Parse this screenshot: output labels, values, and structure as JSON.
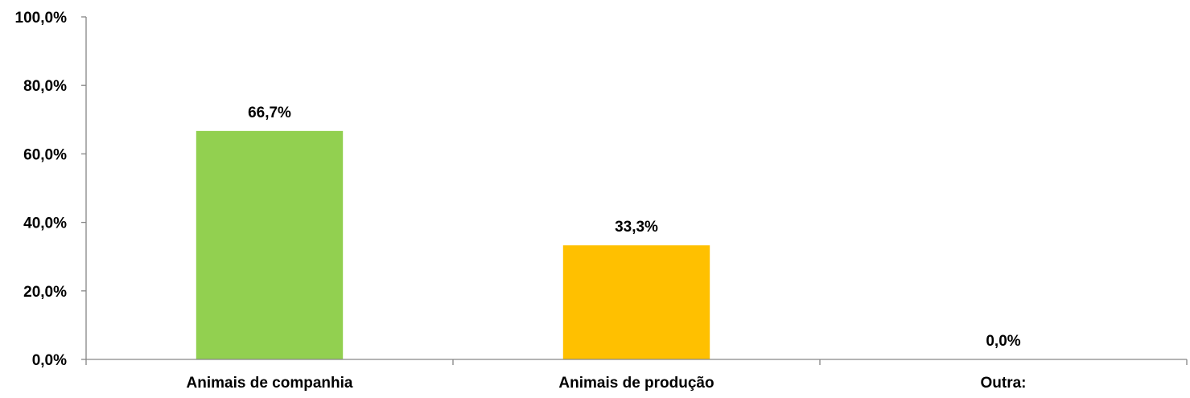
{
  "chart_data": {
    "type": "bar",
    "categories": [
      "Animais de companhia",
      "Animais de produção",
      "Outra:"
    ],
    "values": [
      66.7,
      33.3,
      0.0
    ],
    "data_labels": [
      "66,7%",
      "33,3%",
      "0,0%"
    ],
    "colors": [
      "#92d050",
      "#ffc000",
      "#92d050"
    ],
    "ylim": [
      0,
      100
    ],
    "yticks": [
      0,
      20,
      40,
      60,
      80,
      100
    ],
    "ytick_labels": [
      "0,0%",
      "20,0%",
      "40,0%",
      "60,0%",
      "80,0%",
      "100,0%"
    ],
    "title": "",
    "xlabel": "",
    "ylabel": "",
    "grid": false,
    "legend": "none"
  }
}
